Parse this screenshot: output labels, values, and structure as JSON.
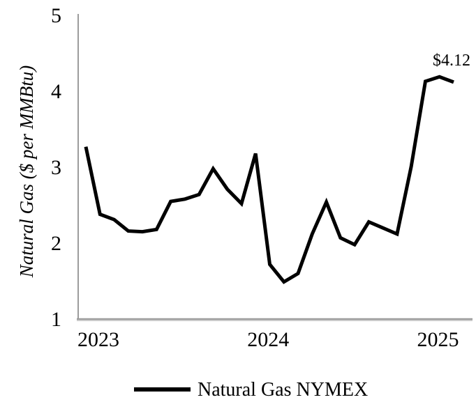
{
  "chart_data": {
    "type": "line",
    "title": "",
    "xlabel": "",
    "ylabel": "Natural Gas ($ per MMBtu)",
    "ylim": [
      1,
      5
    ],
    "y_ticks": [
      5,
      4,
      3,
      2,
      1
    ],
    "x_tick_labels": [
      "2023",
      "2024",
      "2025"
    ],
    "x_tick_month_indices": [
      0,
      12,
      24
    ],
    "categories": [
      "Jan 2023",
      "Feb 2023",
      "Mar 2023",
      "Apr 2023",
      "May 2023",
      "Jun 2023",
      "Jul 2023",
      "Aug 2023",
      "Sep 2023",
      "Oct 2023",
      "Nov 2023",
      "Dec 2023",
      "Jan 2024",
      "Feb 2024",
      "Mar 2024",
      "Apr 2024",
      "May 2024",
      "Jun 2024",
      "Jul 2024",
      "Aug 2024",
      "Sep 2024",
      "Oct 2024",
      "Nov 2024",
      "Dec 2024",
      "Jan 2025",
      "Feb 2025",
      "Mar 2025"
    ],
    "series": [
      {
        "name": "Natural Gas NYMEX",
        "values": [
          3.27,
          2.38,
          2.31,
          2.16,
          2.15,
          2.18,
          2.55,
          2.58,
          2.64,
          2.98,
          2.71,
          2.52,
          3.18,
          1.72,
          1.49,
          1.6,
          2.12,
          2.54,
          2.07,
          1.98,
          2.28,
          2.2,
          2.12,
          3.01,
          4.13,
          4.19,
          4.12
        ]
      }
    ],
    "annotations": [
      {
        "text": "$4.12",
        "target": "last-point",
        "value": 4.12
      }
    ],
    "legend": {
      "position": "bottom",
      "entries": [
        "Natural Gas NYMEX"
      ]
    },
    "grid": false,
    "colors": {
      "line": "#000000",
      "axis": "#9c9c9c",
      "axis_highlight": "#cccccc",
      "text": "#000000",
      "background": "#ffffff"
    }
  }
}
